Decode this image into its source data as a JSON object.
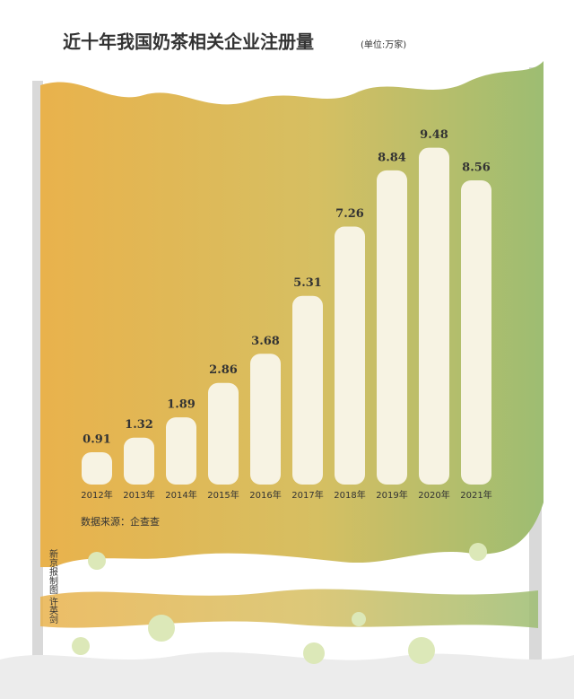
{
  "chart_data": {
    "type": "bar",
    "title": "近十年我国奶茶相关企业注册量",
    "subtitle": "(单位:万家)",
    "categories": [
      "2012年",
      "2013年",
      "2014年",
      "2015年",
      "2016年",
      "2017年",
      "2018年",
      "2019年",
      "2020年",
      "2021年"
    ],
    "values": [
      0.91,
      1.32,
      1.89,
      2.86,
      3.68,
      5.31,
      7.26,
      8.84,
      9.48,
      8.56
    ],
    "color": "#f7f3e3",
    "source": "数据来源：企查查",
    "credit": "新京报制图 许英剑"
  }
}
